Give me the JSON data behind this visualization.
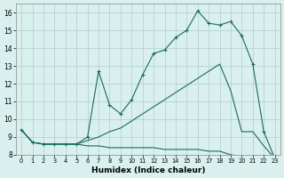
{
  "xlabel": "Humidex (Indice chaleur)",
  "bg_color": "#d9f0ee",
  "grid_color": "#b0ceca",
  "line_color": "#1a6b5a",
  "xlim": [
    -0.5,
    23.5
  ],
  "ylim": [
    8,
    16.5
  ],
  "yticks": [
    8,
    9,
    10,
    11,
    12,
    13,
    14,
    15,
    16
  ],
  "xticks": [
    0,
    1,
    2,
    3,
    4,
    5,
    6,
    7,
    8,
    9,
    10,
    11,
    12,
    13,
    14,
    15,
    16,
    17,
    18,
    19,
    20,
    21,
    22,
    23
  ],
  "series": [
    {
      "x": [
        0,
        1,
        2,
        3,
        4,
        5,
        6,
        7,
        8,
        9,
        10,
        11,
        12,
        13,
        14,
        15,
        16,
        17,
        18,
        19,
        20,
        21,
        22,
        23
      ],
      "y": [
        9.4,
        8.7,
        8.6,
        8.6,
        8.6,
        8.6,
        8.5,
        8.5,
        8.4,
        8.4,
        8.4,
        8.4,
        8.4,
        8.3,
        8.3,
        8.3,
        8.3,
        8.2,
        8.2,
        8.0,
        7.9,
        7.9,
        7.9,
        7.8
      ],
      "markers": false
    },
    {
      "x": [
        0,
        1,
        2,
        3,
        4,
        5,
        6,
        7,
        8,
        9,
        10,
        11,
        12,
        13,
        14,
        15,
        16,
        17,
        18,
        19,
        20,
        21,
        22,
        23
      ],
      "y": [
        9.4,
        8.7,
        8.6,
        8.6,
        8.6,
        8.6,
        8.8,
        9.0,
        9.3,
        9.5,
        9.9,
        10.3,
        10.7,
        11.1,
        11.5,
        11.9,
        12.3,
        12.7,
        13.1,
        11.6,
        9.3,
        9.3,
        8.5,
        7.8
      ],
      "markers": false
    },
    {
      "x": [
        0,
        1,
        2,
        3,
        4,
        5,
        6,
        7,
        8,
        9,
        10,
        11,
        12,
        13,
        14,
        15,
        16,
        17,
        18,
        19,
        20,
        21,
        22,
        23
      ],
      "y": [
        9.4,
        8.7,
        8.6,
        8.6,
        8.6,
        8.6,
        9.0,
        12.7,
        10.8,
        10.3,
        11.1,
        12.5,
        13.7,
        13.9,
        14.6,
        15.0,
        16.1,
        15.4,
        15.3,
        15.5,
        14.7,
        13.1,
        9.3,
        7.8
      ],
      "markers": true
    }
  ]
}
